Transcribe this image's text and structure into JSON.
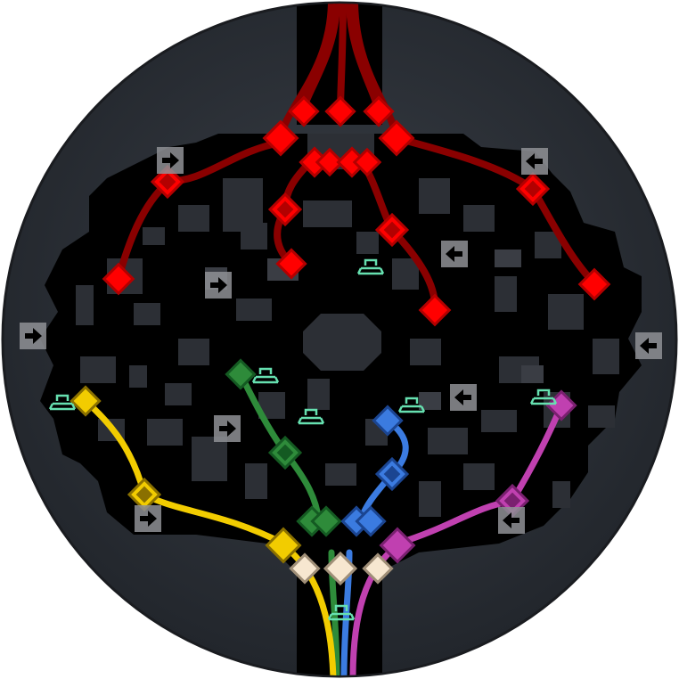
{
  "map": {
    "colors": {
      "outer_bg": "#ffffff",
      "disc_center": "#3a3f47",
      "disc_edge": "#24282e",
      "floor": "#000000",
      "block": "#2c2f35",
      "block_light": "#3a3d44",
      "red": "#ff0000",
      "red_dark": "#b30000",
      "red_path": "#8a0000",
      "green": "#2e8b3a",
      "green_dark": "#145a22",
      "blue": "#3b7be0",
      "blue_dark": "#1b4591",
      "yellow": "#f2cc00",
      "yellow_dark": "#8a7000",
      "magenta": "#c040b0",
      "cream": "#f7e7d0",
      "spawn_icon": "#66e0b0",
      "arrow_box": "#8f9095",
      "arrow": "#000000"
    },
    "legend_icons": [
      "exit-arrow-icon",
      "spawn-pad-icon",
      "waypoint-diamond-icon"
    ]
  }
}
